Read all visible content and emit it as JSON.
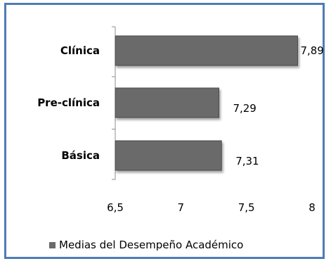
{
  "chart_data": {
    "type": "bar",
    "orientation": "horizontal",
    "categories": [
      "Clínica",
      "Pre-clínica",
      "Básica"
    ],
    "values": [
      7.89,
      7.29,
      7.31
    ],
    "value_labels": [
      "7,89",
      "7,29",
      "7,31"
    ],
    "xlim": [
      6.5,
      8
    ],
    "x_ticks": [
      6.5,
      7,
      7.5,
      8
    ],
    "x_tick_labels": [
      "6,5",
      "7",
      "7,5",
      "8"
    ],
    "series": [
      {
        "name": "Medias del Desempeño Académico",
        "values": [
          7.89,
          7.29,
          7.31
        ]
      }
    ],
    "legend_position": "bottom",
    "grid": false,
    "colors": {
      "bar": "#6a6a6a",
      "bar_border": "#4a4a4a",
      "frame": "#4f7bb7",
      "axis": "#8c8c8c"
    }
  }
}
